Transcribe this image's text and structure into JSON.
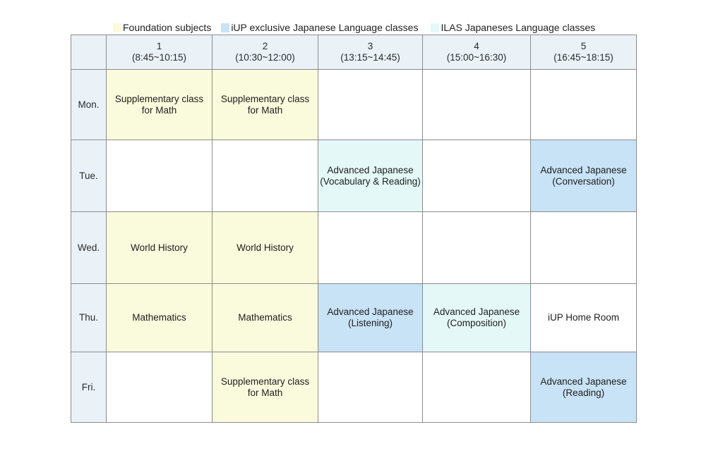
{
  "legend": [
    {
      "label": "Foundation subjects",
      "color": "#fafadc"
    },
    {
      "label": "iUP exclusive Japanese Language classes",
      "color": "#c8e2f6"
    },
    {
      "label": "ILAS Japaneses Language classes",
      "color": "#e4f8f8"
    }
  ],
  "periods": [
    {
      "number": "1",
      "time": "(8:45~10:15)"
    },
    {
      "number": "2",
      "time": "(10:30~12:00)"
    },
    {
      "number": "3",
      "time": "(13:15~14:45)"
    },
    {
      "number": "4",
      "time": "(15:00~16:30)"
    },
    {
      "number": "5",
      "time": "(16:45~18:15)"
    }
  ],
  "days": [
    "Mon.",
    "Tue.",
    "Wed.",
    "Thu.",
    "Fri."
  ],
  "schedule": {
    "mon": {
      "p1": {
        "line1": "Supplementary class",
        "line2": "for Math"
      },
      "p2": {
        "line1": "Supplementary class",
        "line2": "for Math"
      }
    },
    "tue": {
      "p3": {
        "line1": "Advanced Japanese",
        "line2": "(Vocabulary & Reading)"
      },
      "p5": {
        "line1": "Advanced Japanese",
        "line2": "(Conversation)"
      }
    },
    "wed": {
      "p1": {
        "line1": "World History"
      },
      "p2": {
        "line1": "World History"
      }
    },
    "thu": {
      "p1": {
        "line1": "Mathematics"
      },
      "p2": {
        "line1": "Mathematics"
      },
      "p3": {
        "line1": "Advanced Japanese",
        "line2": "(Listening)"
      },
      "p4": {
        "line1": "Advanced Japanese",
        "line2": "(Composition)"
      },
      "p5": {
        "line1": "iUP Home Room"
      }
    },
    "fri": {
      "p2": {
        "line1": "Supplementary class",
        "line2": "for Math"
      },
      "p5": {
        "line1": "Advanced Japanese",
        "line2": "(Reading)"
      }
    }
  }
}
